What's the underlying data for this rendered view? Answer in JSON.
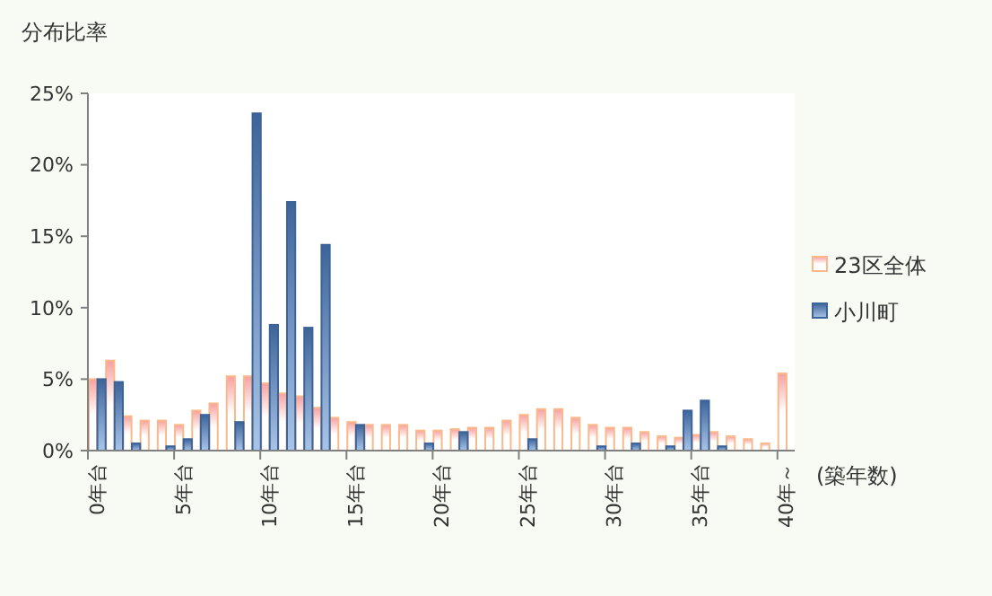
{
  "chart_data": {
    "type": "bar",
    "ylabel": "分布比率",
    "xlabel": "(築年数)",
    "categories": [
      "0年台",
      null,
      null,
      null,
      null,
      "5年台",
      null,
      null,
      null,
      null,
      "10年台",
      null,
      null,
      null,
      null,
      "15年台",
      null,
      null,
      null,
      null,
      "20年台",
      null,
      null,
      null,
      null,
      "25年台",
      null,
      null,
      null,
      null,
      "30年台",
      null,
      null,
      null,
      null,
      "35年台",
      null,
      null,
      null,
      null,
      "40年～"
    ],
    "series": [
      {
        "name": "23区全体",
        "color": "#f9b98a",
        "values": [
          5.0,
          6.3,
          2.4,
          2.1,
          2.1,
          1.8,
          2.8,
          3.3,
          5.2,
          5.2,
          4.7,
          4.0,
          3.8,
          3.0,
          2.3,
          2.0,
          1.8,
          1.8,
          1.8,
          1.4,
          1.4,
          1.5,
          1.6,
          1.6,
          2.1,
          2.5,
          2.9,
          2.9,
          2.3,
          1.8,
          1.6,
          1.6,
          1.3,
          1.0,
          0.9,
          1.1,
          1.3,
          1.0,
          0.8,
          0.5,
          5.4
        ]
      },
      {
        "name": "小川町",
        "color": "#3d6499",
        "values": [
          5.0,
          4.8,
          0.5,
          0,
          0.3,
          0.8,
          2.5,
          0,
          2.0,
          23.6,
          8.8,
          17.4,
          8.6,
          14.4,
          0,
          1.8,
          0,
          0,
          0,
          0.5,
          0,
          1.3,
          0,
          0,
          0,
          0.8,
          0,
          0,
          0,
          0.3,
          0,
          0.5,
          0,
          0.3,
          2.8,
          3.5,
          0.3,
          0,
          0,
          0,
          0
        ]
      }
    ],
    "ylim": [
      0,
      25
    ],
    "yticks": [
      {
        "value": 0,
        "label": "0%"
      },
      {
        "value": 5,
        "label": "5%"
      },
      {
        "value": 10,
        "label": "10%"
      },
      {
        "value": 15,
        "label": "15%"
      },
      {
        "value": 20,
        "label": "20%"
      },
      {
        "value": 25,
        "label": "25%"
      }
    ],
    "grid": false,
    "legend": "right"
  }
}
